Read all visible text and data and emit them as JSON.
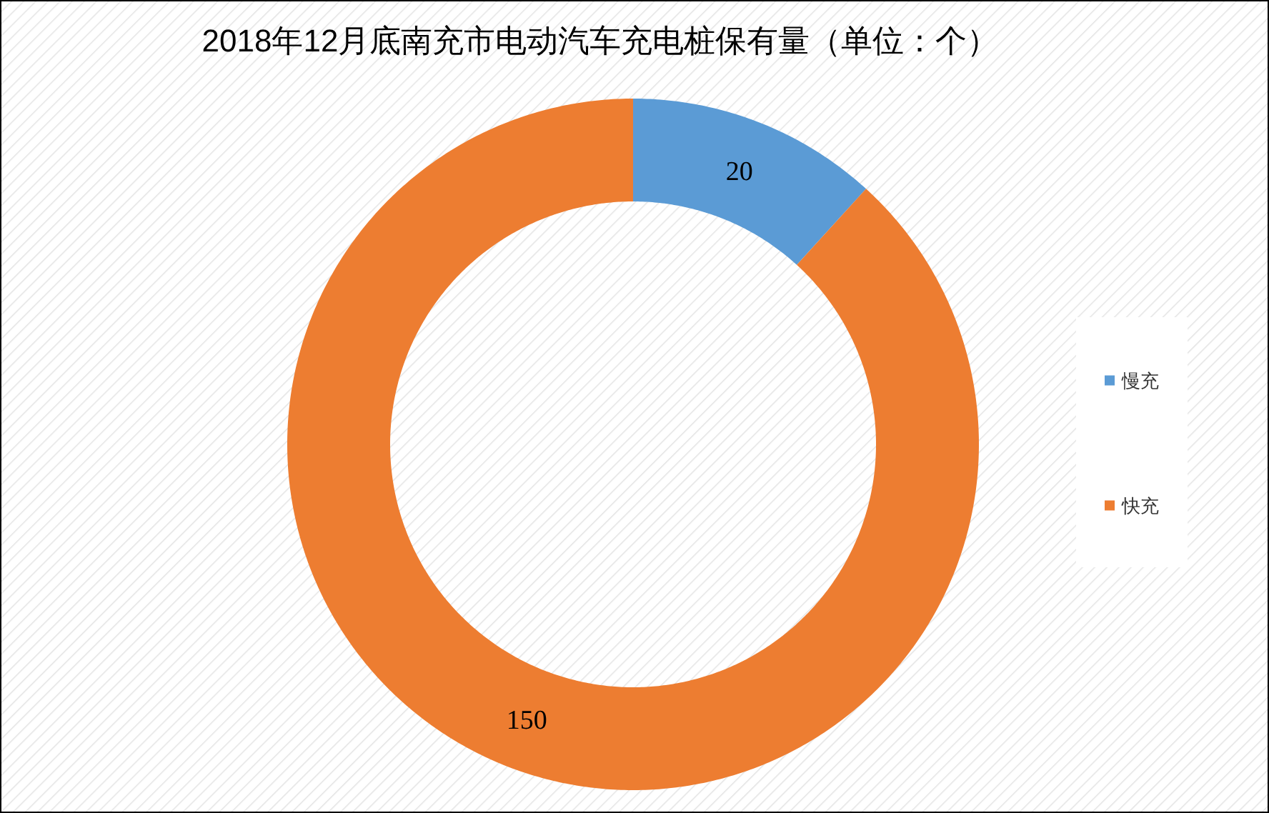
{
  "chart_data": {
    "type": "donut",
    "title": "2018年12月底南充市电动汽车充电桩保有量（单位：个）",
    "categories": [
      "慢充",
      "快充"
    ],
    "values": [
      20,
      150
    ],
    "colors": [
      "#5b9bd5",
      "#ed7d31"
    ],
    "data_labels": true,
    "legend": "right"
  }
}
